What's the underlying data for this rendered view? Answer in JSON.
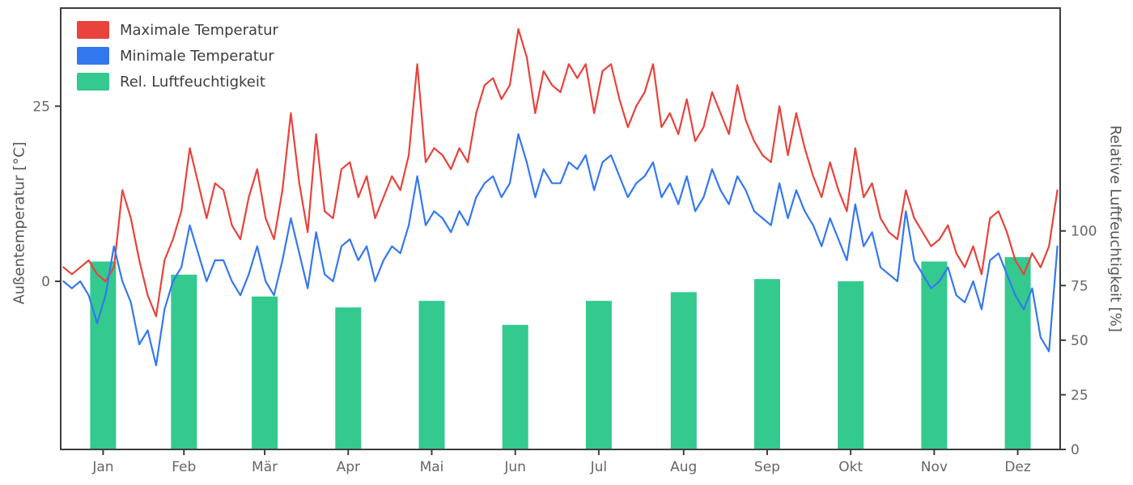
{
  "chart_data": {
    "type": "line",
    "title": "",
    "grid": false,
    "months": [
      "Jan",
      "Feb",
      "Mär",
      "Apr",
      "Mai",
      "Jun",
      "Jul",
      "Aug",
      "Sep",
      "Okt",
      "Nov",
      "Dez"
    ],
    "left_axis": {
      "label": "Außentemperatur [°C]",
      "ticks": [
        "0",
        "25"
      ],
      "tick_values": [
        0,
        25
      ],
      "range": [
        -24,
        39
      ]
    },
    "right_axis": {
      "label": "Relative Luftfeuchtigkeit [%]",
      "ticks": [
        "0",
        "25",
        "50",
        "75",
        "100"
      ],
      "tick_values": [
        0,
        25,
        50,
        75,
        100
      ],
      "range": [
        0,
        202
      ]
    },
    "legend_position": "upper-left",
    "series": [
      {
        "name": "Maximale Temperatur",
        "kind": "line",
        "axis": "left",
        "color": "#e8433c",
        "values": [
          2,
          1,
          2,
          3,
          1,
          0,
          2,
          13,
          9,
          3,
          -2,
          -5,
          3,
          6,
          10,
          19,
          14,
          9,
          14,
          13,
          8,
          6,
          12,
          16,
          9,
          6,
          13,
          24,
          14,
          7,
          21,
          10,
          9,
          16,
          17,
          12,
          15,
          9,
          12,
          15,
          13,
          18,
          31,
          17,
          19,
          18,
          16,
          19,
          17,
          24,
          28,
          29,
          26,
          28,
          36,
          32,
          24,
          30,
          28,
          27,
          31,
          29,
          31,
          24,
          30,
          31,
          26,
          22,
          25,
          27,
          31,
          22,
          24,
          21,
          26,
          20,
          22,
          27,
          24,
          21,
          28,
          23,
          20,
          18,
          17,
          25,
          18,
          24,
          19,
          15,
          12,
          17,
          13,
          10,
          19,
          12,
          14,
          9,
          7,
          6,
          13,
          9,
          7,
          5,
          6,
          8,
          4,
          2,
          5,
          1,
          9,
          10,
          7,
          3,
          1,
          4,
          2,
          5,
          13
        ]
      },
      {
        "name": "Minimale Temperatur",
        "kind": "line",
        "axis": "left",
        "color": "#3478f0",
        "values": [
          0,
          -1,
          0,
          -2,
          -6,
          -2,
          5,
          0,
          -3,
          -9,
          -7,
          -12,
          -4,
          0,
          2,
          8,
          4,
          0,
          3,
          3,
          0,
          -2,
          1,
          5,
          0,
          -2,
          3,
          9,
          4,
          -1,
          7,
          1,
          0,
          5,
          6,
          3,
          5,
          0,
          3,
          5,
          4,
          8,
          15,
          8,
          10,
          9,
          7,
          10,
          8,
          12,
          14,
          15,
          12,
          14,
          21,
          17,
          12,
          16,
          14,
          14,
          17,
          16,
          18,
          13,
          17,
          18,
          15,
          12,
          14,
          15,
          17,
          12,
          14,
          11,
          15,
          10,
          12,
          16,
          13,
          11,
          15,
          13,
          10,
          9,
          8,
          14,
          9,
          13,
          10,
          8,
          5,
          9,
          6,
          3,
          11,
          5,
          7,
          2,
          1,
          0,
          10,
          3,
          1,
          -1,
          0,
          2,
          -2,
          -3,
          0,
          -4,
          3,
          4,
          1,
          -2,
          -4,
          -1,
          -8,
          -10,
          5
        ]
      },
      {
        "name": "Rel. Luftfeuchtigkeit",
        "kind": "bar",
        "axis": "right",
        "color": "#34c98e",
        "values": [
          86,
          80,
          70,
          65,
          68,
          57,
          68,
          72,
          78,
          77,
          86,
          88
        ]
      }
    ]
  },
  "style": {
    "background": "#ffffff",
    "spine_color": "#3d3d3d",
    "tick_label_color": "#666666",
    "axis_label_color": "#555555",
    "legend_text_color": "#3d3d3d"
  }
}
